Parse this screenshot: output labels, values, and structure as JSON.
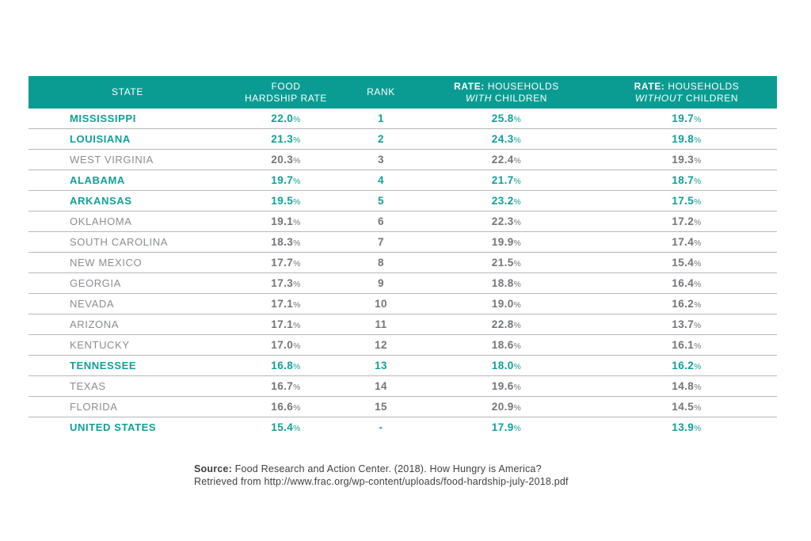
{
  "colors": {
    "header_bg": "#0a9c93",
    "header_text": "#ffffff",
    "accent": "#10a097",
    "state_gray": "#8b8d90",
    "value_gray": "#737578",
    "divider": "#b5b7b9",
    "source_text": "#414042"
  },
  "header": {
    "state": "STATE",
    "food_line1": "FOOD",
    "food_line2": "HARDSHIP RATE",
    "rank": "RANK",
    "rate_label": "RATE:",
    "households": "HOUSEHOLDS",
    "with_word": "WITH",
    "without_word": "WITHOUT",
    "children": "CHILDREN"
  },
  "chart_data": {
    "type": "table",
    "columns": [
      "STATE",
      "FOOD HARDSHIP RATE",
      "RANK",
      "RATE: HOUSEHOLDS WITH CHILDREN",
      "RATE: HOUSEHOLDS WITHOUT CHILDREN"
    ],
    "rows": [
      {
        "state": "MISSISSIPPI",
        "food_hardship_rate": 22.0,
        "rank": "1",
        "with_children": 25.8,
        "without_children": 19.7,
        "highlighted": true
      },
      {
        "state": "LOUISIANA",
        "food_hardship_rate": 21.3,
        "rank": "2",
        "with_children": 24.3,
        "without_children": 19.8,
        "highlighted": true
      },
      {
        "state": "WEST VIRGINIA",
        "food_hardship_rate": 20.3,
        "rank": "3",
        "with_children": 22.4,
        "without_children": 19.3,
        "highlighted": false
      },
      {
        "state": "ALABAMA",
        "food_hardship_rate": 19.7,
        "rank": "4",
        "with_children": 21.7,
        "without_children": 18.7,
        "highlighted": true
      },
      {
        "state": "ARKANSAS",
        "food_hardship_rate": 19.5,
        "rank": "5",
        "with_children": 23.2,
        "without_children": 17.5,
        "highlighted": true
      },
      {
        "state": "OKLAHOMA",
        "food_hardship_rate": 19.1,
        "rank": "6",
        "with_children": 22.3,
        "without_children": 17.2,
        "highlighted": false
      },
      {
        "state": "SOUTH CAROLINA",
        "food_hardship_rate": 18.3,
        "rank": "7",
        "with_children": 19.9,
        "without_children": 17.4,
        "highlighted": false
      },
      {
        "state": "NEW MEXICO",
        "food_hardship_rate": 17.7,
        "rank": "8",
        "with_children": 21.5,
        "without_children": 15.4,
        "highlighted": false
      },
      {
        "state": "GEORGIA",
        "food_hardship_rate": 17.3,
        "rank": "9",
        "with_children": 18.8,
        "without_children": 16.4,
        "highlighted": false
      },
      {
        "state": "NEVADA",
        "food_hardship_rate": 17.1,
        "rank": "10",
        "with_children": 19.0,
        "without_children": 16.2,
        "highlighted": false
      },
      {
        "state": "ARIZONA",
        "food_hardship_rate": 17.1,
        "rank": "11",
        "with_children": 22.8,
        "without_children": 13.7,
        "highlighted": false
      },
      {
        "state": "KENTUCKY",
        "food_hardship_rate": 17.0,
        "rank": "12",
        "with_children": 18.6,
        "without_children": 16.1,
        "highlighted": false
      },
      {
        "state": "TENNESSEE",
        "food_hardship_rate": 16.8,
        "rank": "13",
        "with_children": 18.0,
        "without_children": 16.2,
        "highlighted": true
      },
      {
        "state": "TEXAS",
        "food_hardship_rate": 16.7,
        "rank": "14",
        "with_children": 19.6,
        "without_children": 14.8,
        "highlighted": false
      },
      {
        "state": "FLORIDA",
        "food_hardship_rate": 16.6,
        "rank": "15",
        "with_children": 20.9,
        "without_children": 14.5,
        "highlighted": false
      },
      {
        "state": "UNITED STATES",
        "food_hardship_rate": 15.4,
        "rank": "-",
        "with_children": 17.9,
        "without_children": 13.9,
        "highlighted": true
      }
    ]
  },
  "source": {
    "label": "Source:",
    "line1_rest": " Food Research and Action Center. (2018). How Hungry is America?",
    "line2": "Retrieved from http://www.frac.org/wp-content/uploads/food-hardship-july-2018.pdf"
  }
}
